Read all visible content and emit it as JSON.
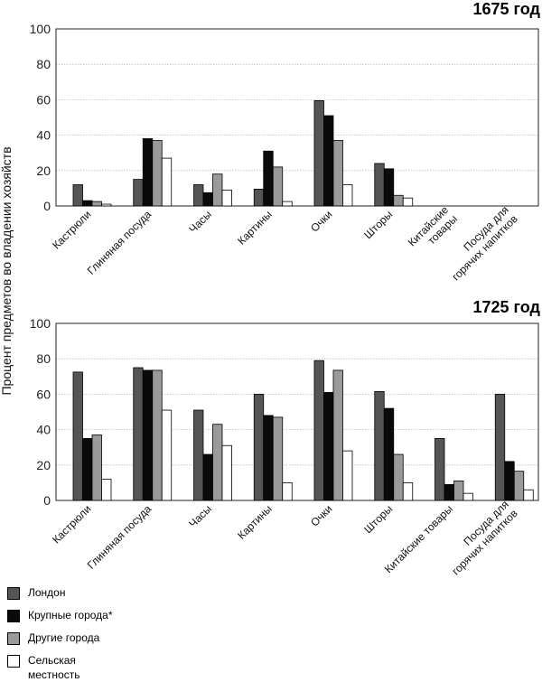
{
  "ylabel": "Процент предметов во владении хозяйств",
  "legend": {
    "items": [
      {
        "label": "Лондон",
        "color": "#555555"
      },
      {
        "label": "Крупные города*",
        "color": "#0a0a0a"
      },
      {
        "label": "Другие города",
        "color": "#9a9a9a"
      },
      {
        "label": "Сельская местность",
        "color": "#ffffff"
      }
    ]
  },
  "chart_data": [
    {
      "type": "bar",
      "title": "1675 год",
      "ylim": [
        0,
        100
      ],
      "yticks": [
        0,
        20,
        40,
        60,
        80,
        100
      ],
      "ylabel": "Процент предметов во владении хозяйств",
      "grid": true,
      "categories": [
        [
          "Кастрюли"
        ],
        [
          "Глиняная посуда"
        ],
        [
          "Часы"
        ],
        [
          "Картины"
        ],
        [
          "Очки"
        ],
        [
          "Шторы"
        ],
        [
          "Китайские",
          "товары"
        ],
        [
          "Посуда для",
          "горячих напитков"
        ]
      ],
      "series": [
        {
          "name": "Лондон",
          "values": [
            12,
            15,
            12,
            9.5,
            59.5,
            24,
            null,
            null
          ]
        },
        {
          "name": "Крупные города*",
          "values": [
            3,
            38,
            7.5,
            31,
            51,
            21,
            null,
            null
          ]
        },
        {
          "name": "Другие города",
          "values": [
            2.5,
            37,
            18,
            22,
            37,
            6,
            null,
            null
          ]
        },
        {
          "name": "Сельская местность",
          "values": [
            1,
            27,
            9,
            2.5,
            12,
            4.5,
            null,
            null
          ]
        }
      ]
    },
    {
      "type": "bar",
      "title": "1725 год",
      "ylim": [
        0,
        100
      ],
      "yticks": [
        0,
        20,
        40,
        60,
        80,
        100
      ],
      "ylabel": "Процент предметов во владении хозяйств",
      "grid": true,
      "categories": [
        [
          "Кастрюли"
        ],
        [
          "Глиняная посуда"
        ],
        [
          "Часы"
        ],
        [
          "Картины"
        ],
        [
          "Очки"
        ],
        [
          "Шторы"
        ],
        [
          "Китайские товары"
        ],
        [
          "Посуда для",
          "горячих напитков"
        ]
      ],
      "series": [
        {
          "name": "Лондон",
          "values": [
            72.5,
            75,
            51,
            60,
            79,
            61.5,
            35,
            60
          ]
        },
        {
          "name": "Крупные города*",
          "values": [
            35,
            73.5,
            26,
            48,
            61,
            52,
            9,
            22
          ]
        },
        {
          "name": "Другие города",
          "values": [
            37,
            73.5,
            43,
            47,
            73.5,
            26,
            11,
            16.5
          ]
        },
        {
          "name": "Сельская местность",
          "values": [
            12,
            51,
            31,
            10,
            28,
            10,
            4,
            6
          ]
        }
      ]
    }
  ]
}
